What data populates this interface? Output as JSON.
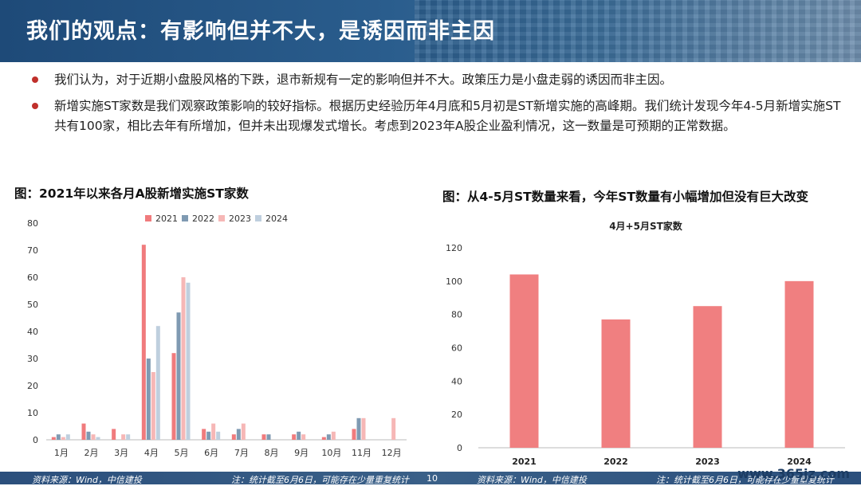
{
  "header": {
    "title": "我们的观点：有影响但并不大，是诱因而非主因"
  },
  "bullets": [
    "我们认为，对于近期小盘股风格的下跌，退市新规有一定的影响但并不大。政策压力是小盘走弱的诱因而非主因。",
    "新增实施ST家数是我们观察政策影响的较好指标。根据历史经验历年4月底和5月初是ST新增实施的高峰期。我们统计发现今年4-5月新增实施ST共有100家，相比去年有所增加，但并未出现爆发式增长。考虑到2023年A股企业盈利情况，这一数量是可预期的正常数据。"
  ],
  "figures": {
    "left_title": "图：2021年以来各月A股新增实施ST家数",
    "right_title": "图：从4-5月ST数量来看，今年ST数量有小幅增加但没有巨大改变"
  },
  "colors": {
    "s2021": "#f07b7d",
    "s2022": "#7f9ab2",
    "s2023": "#f6b7b6",
    "s2024": "#bfcfde",
    "right_bar": "#f07f80"
  },
  "footer": {
    "source_left": "资料来源：Wind，中信建投",
    "note_left": "注：统计截至6月6日，可能存在少量重复统计",
    "page": "10",
    "source_right": "资料来源：Wind，中信建投",
    "note_right": "注：统计截至6月6日，可能存在少量重复统计",
    "watermark": "www.365jz.com"
  },
  "chart_data": [
    {
      "type": "bar",
      "categories": [
        "1月",
        "2月",
        "3月",
        "4月",
        "5月",
        "6月",
        "7月",
        "8月",
        "9月",
        "10月",
        "11月",
        "12月"
      ],
      "series": [
        {
          "name": "2021",
          "values": [
            1,
            6,
            4,
            72,
            32,
            4,
            2,
            2,
            2,
            1,
            4,
            0
          ]
        },
        {
          "name": "2022",
          "values": [
            2,
            3,
            0,
            30,
            47,
            3,
            4,
            2,
            3,
            2,
            8,
            0
          ]
        },
        {
          "name": "2023",
          "values": [
            1,
            2,
            2,
            25,
            60,
            6,
            6,
            0,
            2,
            3,
            8,
            8
          ]
        },
        {
          "name": "2024",
          "values": [
            2,
            1,
            2,
            42,
            58,
            3,
            0,
            0,
            0,
            0,
            0,
            0
          ]
        }
      ],
      "ylim": [
        0,
        80
      ],
      "yticks": [
        0,
        10,
        20,
        30,
        40,
        50,
        60,
        70,
        80
      ],
      "legend": "top"
    },
    {
      "type": "bar",
      "title": "4月+5月ST家数",
      "categories": [
        "2021",
        "2022",
        "2023",
        "2024"
      ],
      "values": [
        104,
        77,
        85,
        100
      ],
      "ylim": [
        0,
        120
      ],
      "yticks": [
        0,
        20,
        40,
        60,
        80,
        100,
        120
      ]
    }
  ]
}
